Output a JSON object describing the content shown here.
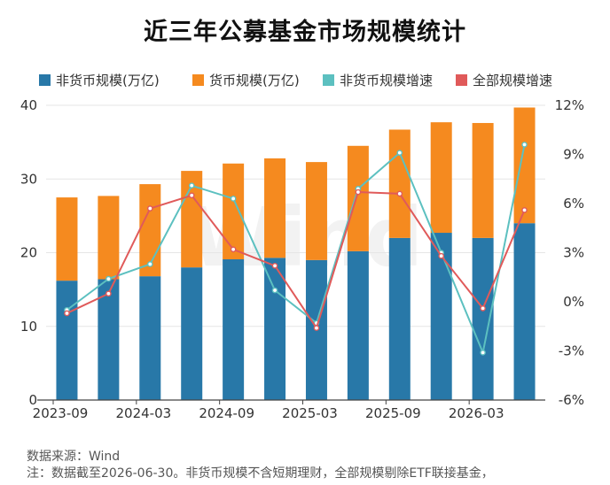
{
  "title": "近三年公募基金市场规模统计",
  "source_note": "数据来源：Wind",
  "footer_note": "注：数据截至2026-06-30。非货币规模不含短期理财，全部规模剔除ETF联接基金，",
  "watermark": "Wind",
  "colors": {
    "non_money": "#2878a8",
    "money": "#f58a1f",
    "non_money_growth": "#5cc0c0",
    "total_growth": "#e05a5a",
    "grid": "#e6e6e6",
    "axis": "#444444"
  },
  "chart_data": {
    "type": "bar",
    "stacked": true,
    "title": "近三年公募基金市场规模统计",
    "x_tick_labels": [
      "2023-09",
      "2024-03",
      "2024-09",
      "2025-03",
      "2025-09",
      "2026-03"
    ],
    "n_periods": 12,
    "series": [
      {
        "name": "非货币规模(万亿)",
        "type": "bar",
        "axis": "left",
        "values": [
          16.2,
          16.4,
          16.8,
          18.0,
          19.1,
          19.3,
          19.0,
          20.2,
          22.0,
          22.7,
          22.0,
          24.0
        ]
      },
      {
        "name": "货币规模(万亿)",
        "type": "bar",
        "axis": "left",
        "values": [
          11.3,
          11.3,
          12.5,
          13.1,
          13.0,
          13.5,
          13.3,
          14.3,
          14.7,
          15.0,
          15.6,
          15.7
        ]
      },
      {
        "name": "非货币规模增速",
        "type": "line",
        "axis": "right",
        "values": [
          -0.5,
          1.4,
          2.3,
          7.1,
          6.3,
          0.7,
          -1.3,
          6.9,
          9.1,
          3.0,
          -3.1,
          9.6
        ]
      },
      {
        "name": "全部规模增速",
        "type": "line",
        "axis": "right",
        "values": [
          -0.7,
          0.5,
          5.7,
          6.5,
          3.2,
          2.2,
          -1.6,
          6.7,
          6.6,
          2.8,
          -0.4,
          5.6
        ]
      }
    ],
    "left_axis": {
      "min": 0,
      "max": 40,
      "ticks": [
        0,
        10,
        20,
        30,
        40
      ]
    },
    "right_axis": {
      "min": -6,
      "max": 12,
      "ticks": [
        -6,
        -3,
        0,
        3,
        6,
        9,
        12
      ],
      "tick_labels": [
        "-6%",
        "-3%",
        "0%",
        "3%",
        "6%",
        "9%",
        "12%"
      ]
    },
    "grid": true,
    "legend_position": "top"
  }
}
